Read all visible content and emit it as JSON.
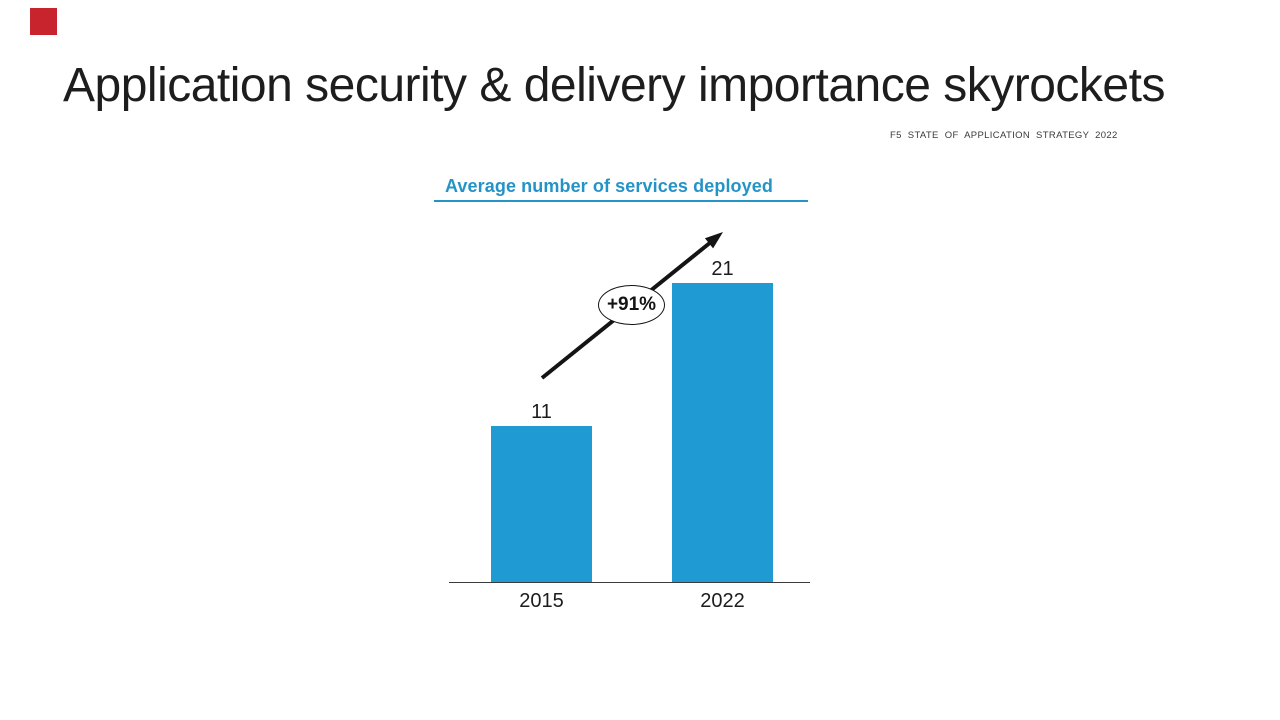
{
  "slide": {
    "title": "Application security & delivery importance skyrockets",
    "source": "F5 STATE OF APPLICATION STRATEGY 2022"
  },
  "chart_data": {
    "type": "bar",
    "title": "Average number of services deployed",
    "categories": [
      "2015",
      "2022"
    ],
    "values": [
      11,
      21
    ],
    "annotation": "+91%",
    "xlabel": "",
    "ylabel": "",
    "ylim": [
      0,
      22
    ],
    "grid": false,
    "legend": false,
    "bar_color": "#209AD2"
  },
  "colors": {
    "accent_red": "#C8242E",
    "bar_blue": "#209AD2",
    "chart_title_blue": "#2494C6",
    "title_dark": "#1D1D1D",
    "note_gray": "#3A3A3A",
    "annotation_black": "#141414"
  }
}
